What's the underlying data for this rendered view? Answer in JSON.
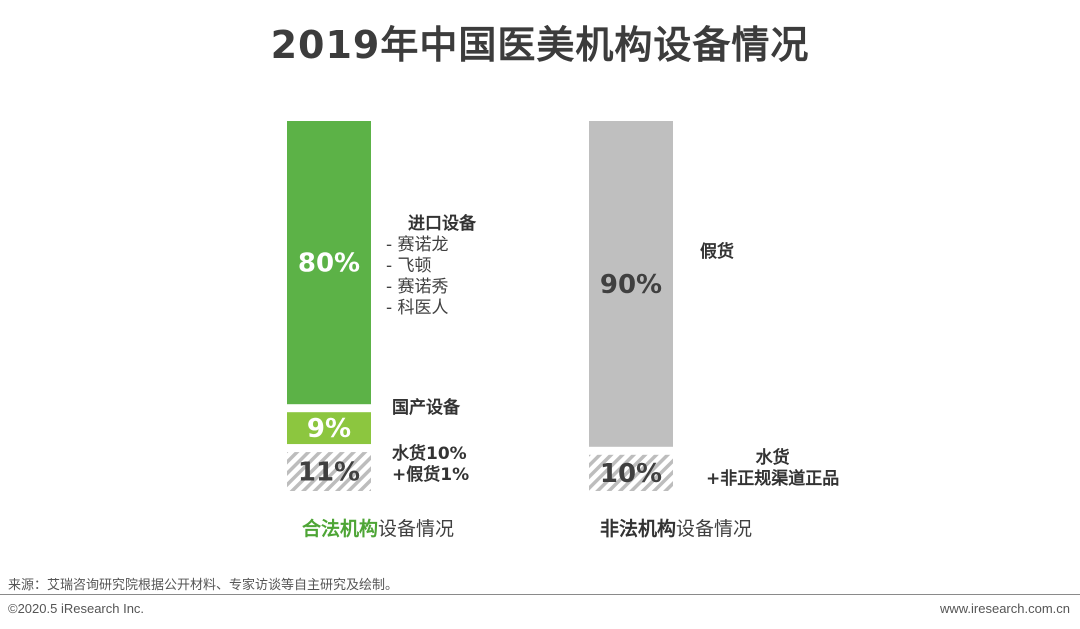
{
  "title": "2019年中国医美机构设备情况",
  "chart_data": [
    {
      "type": "bar",
      "stacked": true,
      "category": "合法机构设备情况",
      "caption_highlight": "合法机构",
      "caption_rest": "设备情况",
      "segments": [
        {
          "name": "进口设备",
          "value": 80,
          "label": "80%",
          "color": "#5cb247",
          "sub_items": [
            "- 赛诺龙",
            "- 飞顿",
            "- 赛诺秀",
            "- 科医人"
          ]
        },
        {
          "name": "国产设备",
          "value": 9,
          "label": "9%",
          "color": "#8cc63f",
          "sub_items": []
        },
        {
          "name": "水货10%",
          "name2": "+假货1%",
          "value": 11,
          "label": "11%",
          "color": "hatch",
          "sub_items": []
        }
      ]
    },
    {
      "type": "bar",
      "stacked": true,
      "category": "非法机构设备情况",
      "caption_highlight": "非法机构",
      "caption_rest": "设备情况",
      "segments": [
        {
          "name": "假货",
          "value": 90,
          "label": "90%",
          "color": "#bfbfbf",
          "sub_items": []
        },
        {
          "name": "水货",
          "name2": "+非正规渠道正品",
          "value": 10,
          "label": "10%",
          "color": "hatch",
          "sub_items": []
        }
      ]
    }
  ],
  "source": "来源：艾瑞咨询研究院根据公开材料、专家访谈等自主研究及绘制。",
  "footer": {
    "left": "©2020.5 iResearch Inc.",
    "right": "www.iresearch.com.cn"
  }
}
